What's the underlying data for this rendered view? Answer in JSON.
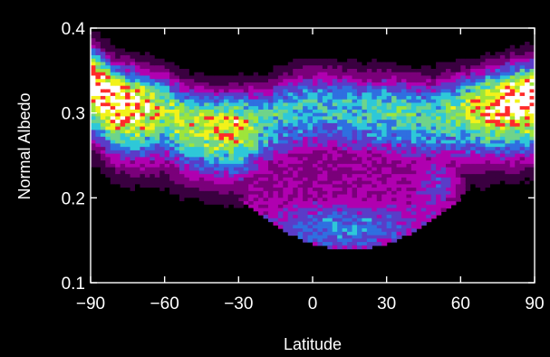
{
  "chart_data": {
    "type": "heatmap",
    "title": "",
    "xlabel": "Latitude",
    "ylabel": "Normal Albedo",
    "xlim": [
      -90,
      90
    ],
    "ylim": [
      0.1,
      0.4
    ],
    "x_ticks": [
      -90,
      -60,
      -30,
      0,
      30,
      60,
      90
    ],
    "x_tick_labels": [
      "−90",
      "−60",
      "−30",
      "0",
      "30",
      "60",
      "90"
    ],
    "y_ticks": [
      0.1,
      0.2,
      0.3,
      0.4
    ],
    "y_tick_labels": [
      "0.1",
      "0.2",
      "0.3",
      "0.4"
    ],
    "grid": false,
    "legend": "none",
    "colormap": [
      "#000000",
      "#3a0040",
      "#7a007a",
      "#b000b0",
      "#5a3cc8",
      "#2f6fe0",
      "#2ec8d8",
      "#6fd48a",
      "#9ee53a",
      "#f2f21a",
      "#ff2a2a",
      "#ffffff"
    ],
    "density_ridge": {
      "latitude": [
        -90,
        -80,
        -70,
        -60,
        -50,
        -40,
        -30,
        -20,
        -10,
        0,
        10,
        20,
        30,
        40,
        50,
        60,
        70,
        80,
        90
      ],
      "albedo": [
        0.34,
        0.315,
        0.31,
        0.305,
        0.29,
        0.285,
        0.285,
        0.29,
        0.305,
        0.31,
        0.31,
        0.305,
        0.305,
        0.3,
        0.3,
        0.305,
        0.31,
        0.315,
        0.32
      ],
      "peak_density": [
        0.95,
        1.0,
        0.9,
        0.7,
        0.72,
        0.78,
        0.8,
        0.6,
        0.55,
        0.55,
        0.55,
        0.55,
        0.6,
        0.58,
        0.6,
        0.68,
        0.85,
        0.98,
        1.0
      ]
    },
    "lower_lobe": {
      "latitude_range": [
        -30,
        60
      ],
      "albedo_center": 0.18,
      "note": ""
    }
  }
}
